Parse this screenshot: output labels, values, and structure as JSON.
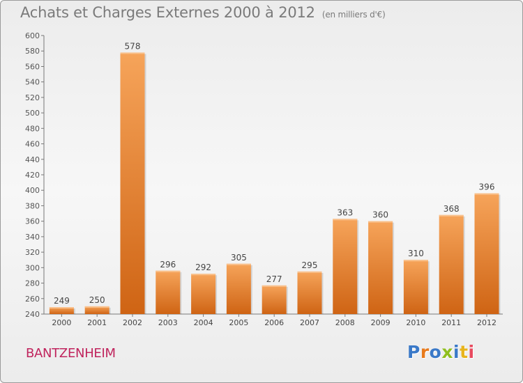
{
  "title": "Achats et Charges Externes 2000 à 2012",
  "subtitle": "(en milliers d'€)",
  "commune": "BANTZENHEIM",
  "brand": {
    "text": "Proxiti",
    "letter_colors": [
      "#3a79c8",
      "#e87a1c",
      "#3a79c8",
      "#8fbf1e",
      "#3a79c8",
      "#e8b41c",
      "#e84a5f"
    ]
  },
  "colors": {
    "bar_top": "#f6a45a",
    "bar_bottom": "#cf6414",
    "text": "#7a7a7a",
    "commune": "#c0245d"
  },
  "chart_data": {
    "type": "bar",
    "title": "Achats et Charges Externes 2000 à 2012",
    "subtitle": "(en milliers d'€)",
    "categories": [
      "2000",
      "2001",
      "2002",
      "2003",
      "2004",
      "2005",
      "2006",
      "2007",
      "2008",
      "2009",
      "2010",
      "2011",
      "2012"
    ],
    "values": [
      249,
      250,
      578,
      296,
      292,
      305,
      277,
      295,
      363,
      360,
      310,
      368,
      396
    ],
    "ylim": [
      240,
      600
    ],
    "ytick_step": 20,
    "grid": false,
    "data_labels": true
  }
}
